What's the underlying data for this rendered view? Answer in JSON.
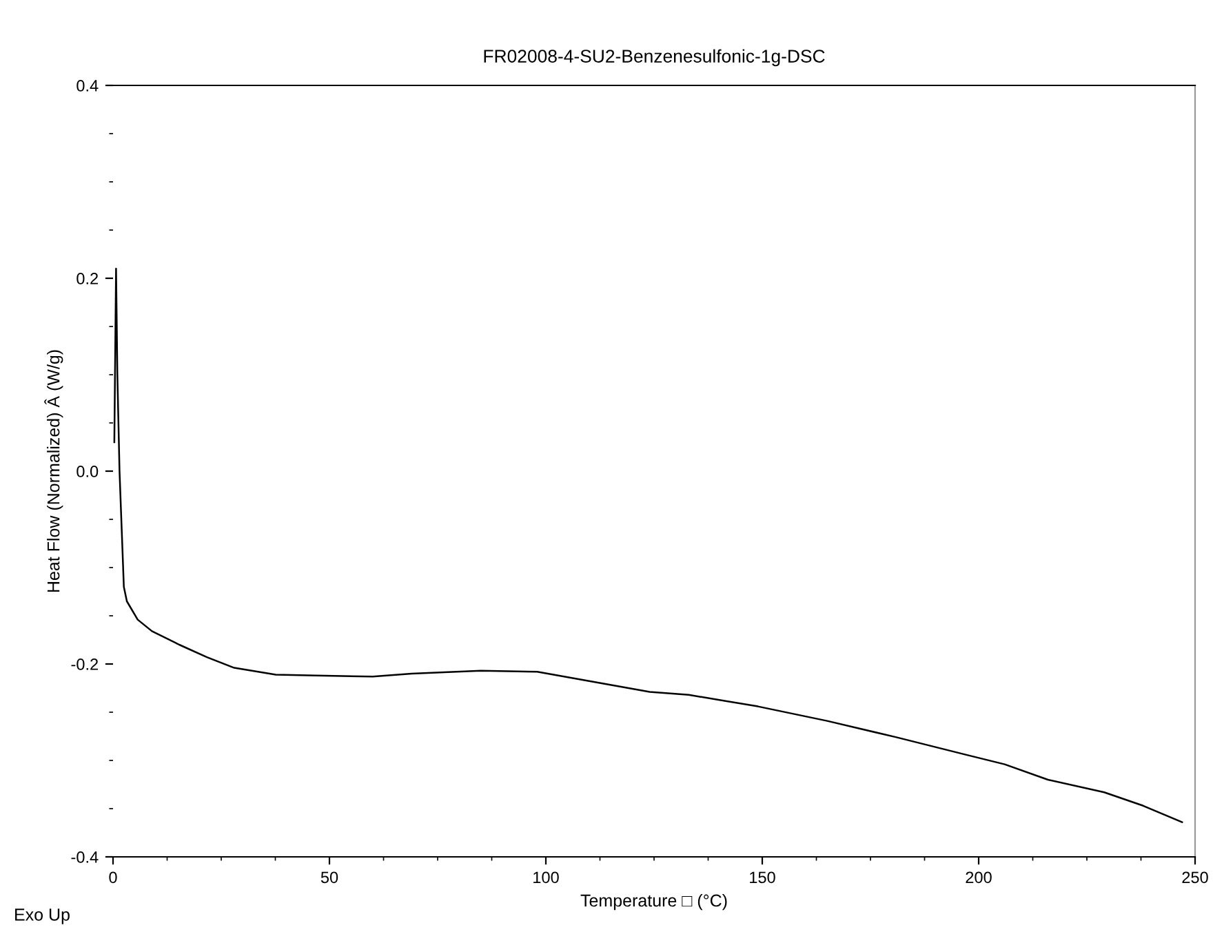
{
  "chart_data": {
    "type": "line",
    "title": "FR02008-4-SU2-Benzenesulfonic-1g-DSC",
    "xlabel": "Temperature □ (°C)",
    "ylabel": "Heat Flow (Normalized) Â (W/g)",
    "annotations": [
      "Exo Up"
    ],
    "series": [
      {
        "color": "#000000",
        "x": [
          0.3,
          0.5,
          0.7,
          1.0,
          1.5,
          2.0,
          2.5,
          3.2,
          5.7,
          9,
          15.3,
          21.7,
          28,
          37.6,
          47,
          60,
          69,
          85,
          98,
          108,
          124,
          133,
          149,
          165,
          181,
          197,
          206,
          216,
          229,
          238,
          247
        ],
        "values": [
          0.03,
          0.12,
          0.21,
          0.1,
          0.0,
          -0.06,
          -0.12,
          -0.135,
          -0.154,
          -0.166,
          -0.18,
          -0.193,
          -0.204,
          -0.211,
          -0.212,
          -0.213,
          -0.21,
          -0.207,
          -0.208,
          -0.216,
          -0.229,
          -0.232,
          -0.244,
          -0.259,
          -0.276,
          -0.294,
          -0.304,
          -0.32,
          -0.333,
          -0.347,
          -0.364
        ]
      }
    ],
    "xlim": [
      0,
      250
    ],
    "xticks": [
      0,
      50,
      100,
      150,
      200,
      250
    ],
    "ylim": [
      -0.4,
      0.4
    ],
    "yticks": [
      {
        "value": -0.4,
        "label": "-0.4"
      },
      {
        "value": -0.2,
        "label": "-0.2"
      },
      {
        "value": 0.0,
        "label": "0.0"
      },
      {
        "value": 0.2,
        "label": "0.2"
      },
      {
        "value": 0.4,
        "label": "0.4"
      }
    ],
    "grid": false,
    "legend": false,
    "marker": "none",
    "line_style": "solid"
  }
}
